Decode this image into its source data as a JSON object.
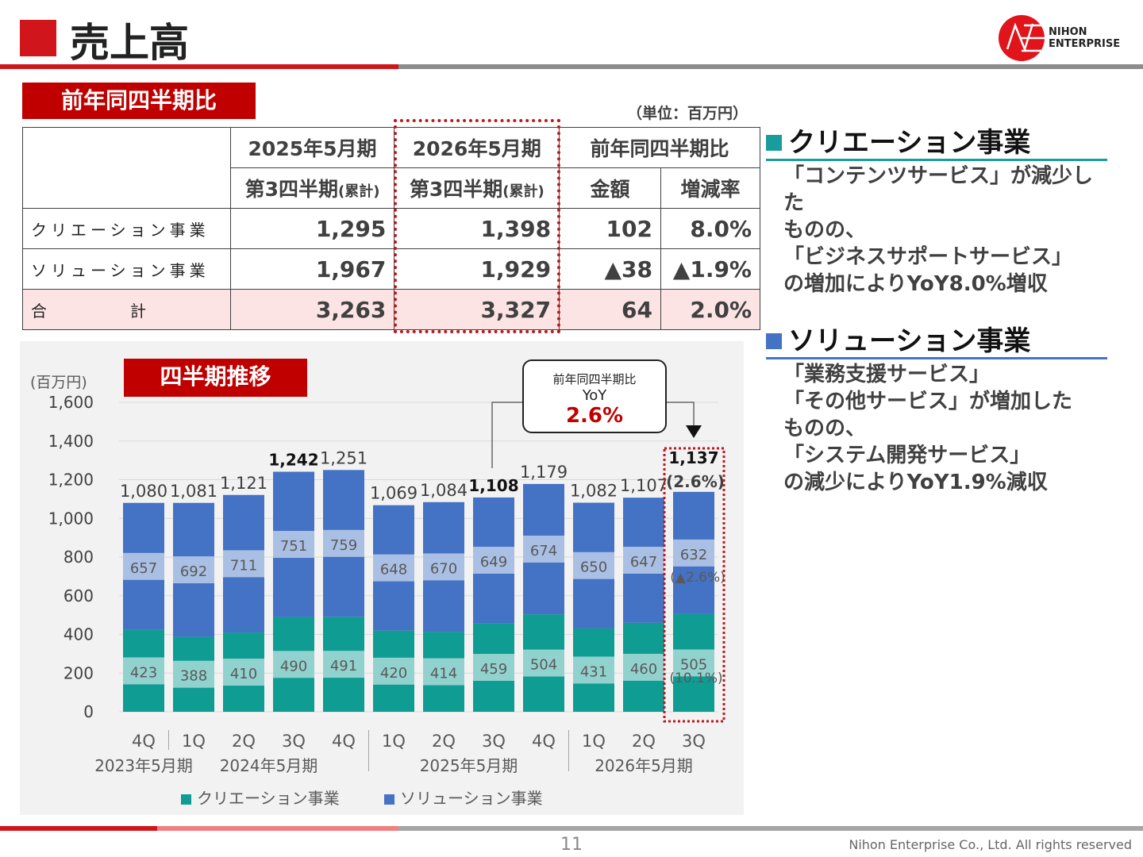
{
  "header": {
    "title": "売上高",
    "logo_text": [
      "NIHON",
      "ENTERPRISE"
    ],
    "logo_initials": "NE"
  },
  "yoy_section": {
    "label": "前年同四半期比",
    "unit": "（単位：百万円）",
    "columns": {
      "fy2025": "2025年5月期",
      "fy2026": "2026年5月期",
      "yoy": "前年同四半期比",
      "q3": "第3四半期",
      "cumul": "(累計)",
      "amount": "金額",
      "rate": "増減率"
    },
    "rows": [
      {
        "name": "クリエーション事業",
        "fy2025": "1,295",
        "fy2026": "1,398",
        "amount": "102",
        "rate": "8.0%"
      },
      {
        "name": "ソリューション事業",
        "fy2025": "1,967",
        "fy2026": "1,929",
        "amount": "▲38",
        "rate": "▲1.9%"
      },
      {
        "name": "合　　　　計",
        "fy2025": "3,263",
        "fy2026": "3,327",
        "amount": "64",
        "rate": "2.0%"
      }
    ]
  },
  "commentary": [
    {
      "title": "クリエーション事業",
      "color": "#1a9c9c",
      "lines": [
        "「コンテンツサービス」が減少した",
        "ものの、",
        "「ビジネスサポートサービス」",
        "の増加によりYoY8.0%増収"
      ]
    },
    {
      "title": "ソリューション事業",
      "color": "#4472c4",
      "lines": [
        "「業務支援サービス」",
        "「その他サービス」が増加した",
        "ものの、",
        "「システム開発サービス」",
        "の減少によりYoY1.9%減収"
      ]
    }
  ],
  "chart_label": "四半期推移",
  "callout": {
    "line1": "前年同四半期比",
    "line2": "YoY",
    "value": "2.6%"
  },
  "chart_data": {
    "type": "bar",
    "stacked": true,
    "ylabel": "(百万円)",
    "ylim": [
      0,
      1600
    ],
    "yticks": [
      0,
      200,
      400,
      600,
      800,
      1000,
      1200,
      1400,
      1600
    ],
    "grid": true,
    "legend": "bottom",
    "categories": [
      "4Q",
      "1Q",
      "2Q",
      "3Q",
      "4Q",
      "1Q",
      "2Q",
      "3Q",
      "4Q",
      "1Q",
      "2Q",
      "3Q"
    ],
    "groups": [
      {
        "label": "2023年5月期",
        "span": 1
      },
      {
        "label": "2024年5月期",
        "span": 4
      },
      {
        "label": "2025年5月期",
        "span": 4
      },
      {
        "label": "2026年5月期",
        "span": 3
      }
    ],
    "series": [
      {
        "name": "クリエーション事業",
        "color": "#0e9c93",
        "values": [
          423,
          388,
          410,
          490,
          491,
          420,
          414,
          459,
          504,
          431,
          460,
          505
        ]
      },
      {
        "name": "ソリューション事業",
        "color": "#4472c4",
        "values": [
          657,
          692,
          711,
          751,
          759,
          648,
          670,
          649,
          674,
          650,
          647,
          632
        ]
      }
    ],
    "totals": [
      "1,080",
      "1,081",
      "1,121",
      "1,242",
      "1,251",
      "1,069",
      "1,084",
      "1,108",
      "1,179",
      "1,082",
      "1,107",
      "1,137"
    ],
    "bold_totals": [
      3,
      7,
      11
    ],
    "annotations": {
      "total_yoy": "(2.6%)",
      "solution_yoy": "(▲2.6%)",
      "creation_yoy": "(10.1%)"
    }
  },
  "footer": {
    "page": "11",
    "copyright": "Nihon Enterprise Co., Ltd. All rights reserved"
  }
}
